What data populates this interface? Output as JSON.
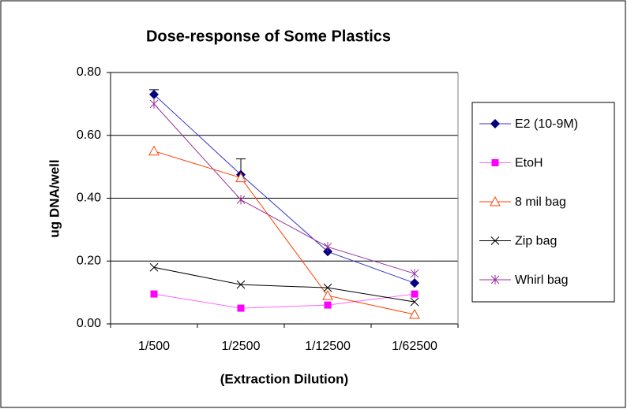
{
  "chart_data": {
    "type": "line",
    "title": "Dose-response of Some Plastics",
    "x_label": "(Extraction Dilution)",
    "y_label": "ug DNA/well",
    "categories": [
      "1/500",
      "1/2500",
      "1/12500",
      "1/62500"
    ],
    "ylim": [
      0,
      0.8
    ],
    "yticks": [
      {
        "value": 0,
        "label": "0.00"
      },
      {
        "value": 0.2,
        "label": "0.20"
      },
      {
        "value": 0.4,
        "label": "0.40"
      },
      {
        "value": 0.6,
        "label": "0.60"
      },
      {
        "value": 0.8,
        "label": "0.80"
      }
    ],
    "grid": true,
    "legend": "right",
    "series": [
      {
        "name": "E2 (10-9M)",
        "color": "#3333cc",
        "marker_color": "#000080",
        "marker": "diamond",
        "values": [
          0.73,
          0.475,
          0.23,
          0.13
        ],
        "errors": [
          0.015,
          0.05,
          null,
          null
        ]
      },
      {
        "name": "EtoH",
        "color": "#ff66ff",
        "marker_color": "#ff00ff",
        "marker": "square",
        "values": [
          0.095,
          0.05,
          0.06,
          0.095
        ]
      },
      {
        "name": "8 mil bag",
        "color": "#ff4000",
        "marker_color": "#ff4000",
        "marker": "triangle",
        "values": [
          0.55,
          0.465,
          0.09,
          0.03
        ]
      },
      {
        "name": "Zip bag",
        "color": "#000000",
        "marker_color": "#000000",
        "marker": "x",
        "values": [
          0.18,
          0.125,
          0.115,
          0.07
        ]
      },
      {
        "name": "Whirl bag",
        "color": "#993399",
        "marker_color": "#993399",
        "marker": "star",
        "values": [
          0.7,
          0.395,
          0.245,
          0.16
        ]
      }
    ]
  }
}
